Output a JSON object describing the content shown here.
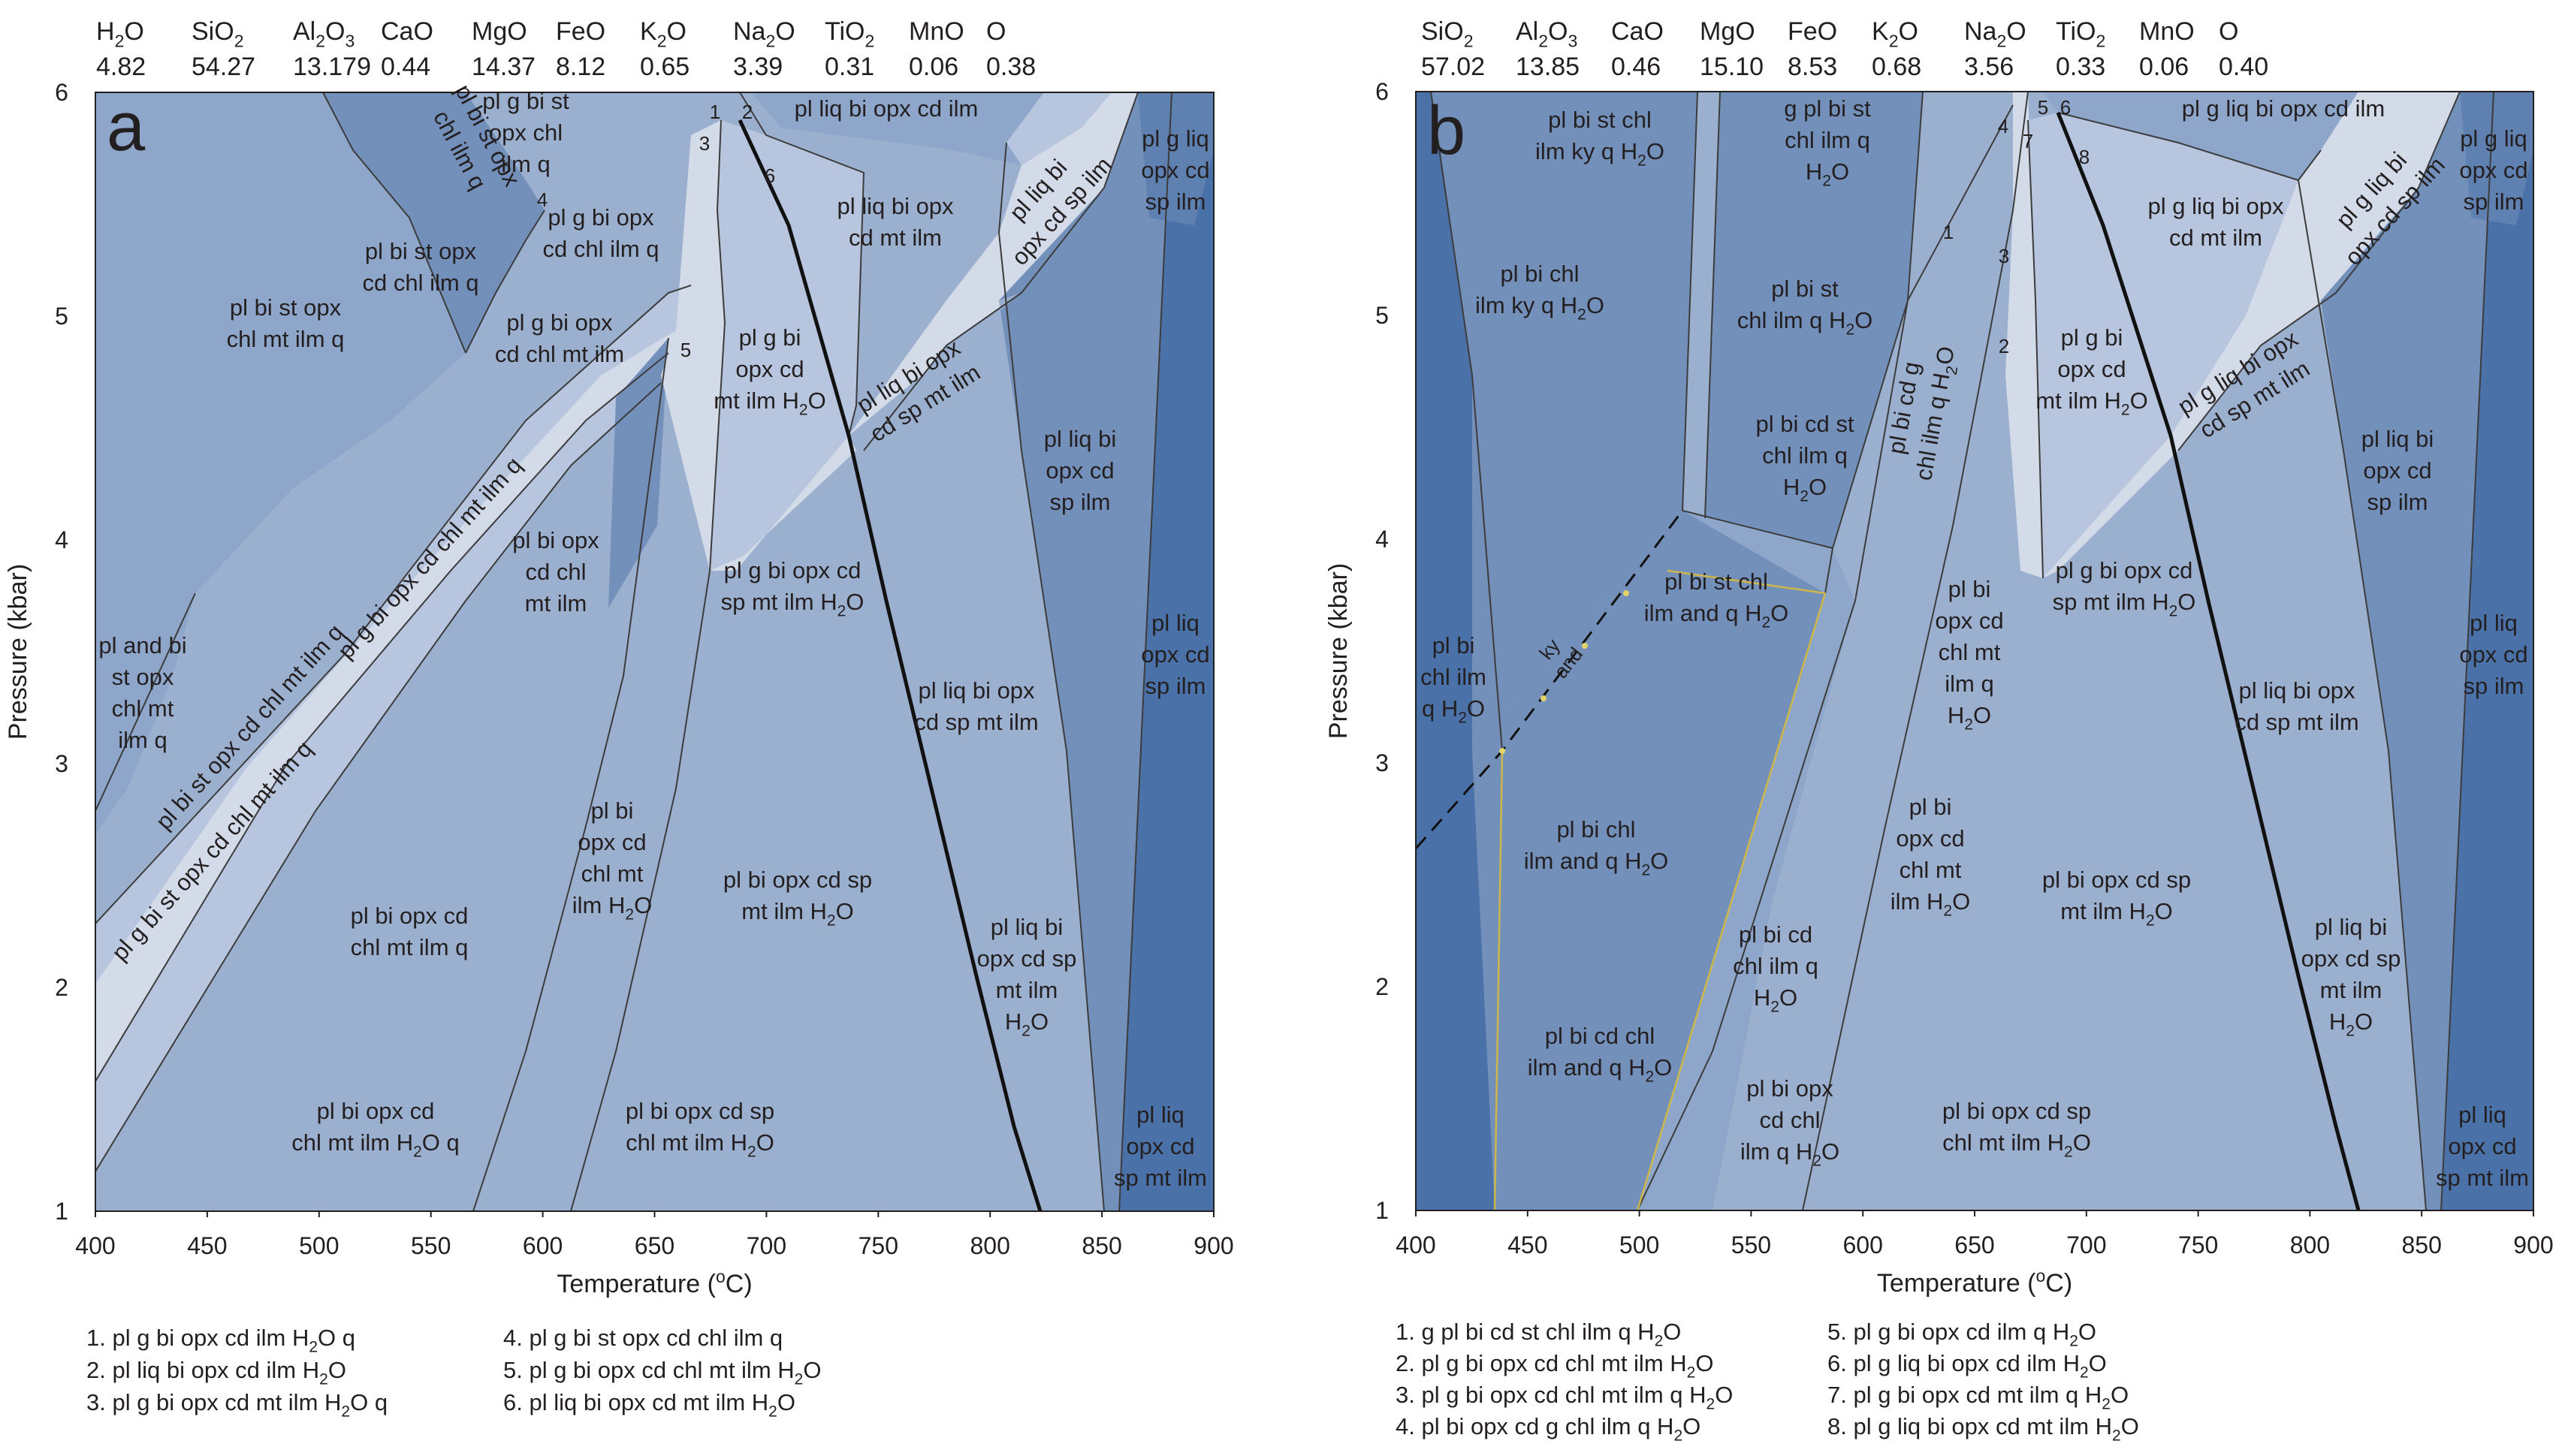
{
  "colors": {
    "field_lightest": "#d3dbe8",
    "field_light": "#b7c6de",
    "field_mid_light": "#9bb0cf",
    "field_mid": "#8ea6c9",
    "field_dark": "#7390bb",
    "field_darker": "#5f81b2",
    "field_darkest": "#4a72a8",
    "boundary_line": "#3c3c3c",
    "solidus_line": "#111111",
    "ky_and_line": "#111111",
    "ky_and_dots": "#e2d36b",
    "yellow_line": "#cdb74a"
  },
  "panel_a": {
    "label": "a",
    "composition": [
      {
        "oxide": "H<sub>2</sub>O",
        "value": "4.82"
      },
      {
        "oxide": "SiO<sub>2</sub>",
        "value": "54.27"
      },
      {
        "oxide": "Al<sub>2</sub>O<sub>3</sub>",
        "value": "13.179"
      },
      {
        "oxide": "CaO",
        "value": "0.44"
      },
      {
        "oxide": "MgO",
        "value": "14.37"
      },
      {
        "oxide": "FeO",
        "value": "8.12"
      },
      {
        "oxide": "K<sub>2</sub>O",
        "value": "0.65"
      },
      {
        "oxide": "Na<sub>2</sub>O",
        "value": "3.39"
      },
      {
        "oxide": "TiO<sub>2</sub>",
        "value": "0.31"
      },
      {
        "oxide": "MnO",
        "value": "0.06"
      },
      {
        "oxide": "O",
        "value": "0.38"
      }
    ],
    "xlabel": "Temperature (<sup>o</sup>C)",
    "ylabel": "Pressure (kbar)",
    "x_ticks": [
      "400",
      "450",
      "500",
      "550",
      "600",
      "650",
      "700",
      "750",
      "800",
      "850",
      "900"
    ],
    "y_ticks": [
      "1",
      "2",
      "3",
      "4",
      "5",
      "6"
    ],
    "field_labels": [
      {
        "lines": [
          "pl g bi st",
          "opx chl",
          "ilm q"
        ]
      },
      {
        "lines": [
          "pl bi st opx",
          "chl ilm q"
        ],
        "rotate": 62
      },
      {
        "lines": [
          "pl g bi opx",
          "cd chl ilm q"
        ]
      },
      {
        "lines": [
          "pl bi st opx",
          "cd chl ilm q"
        ]
      },
      {
        "lines": [
          "pl bi st opx",
          "chl mt ilm q"
        ]
      },
      {
        "lines": [
          "pl g bi opx",
          "cd chl mt ilm"
        ]
      },
      {
        "lines": [
          "pl g bi opx cd chl mt ilm q"
        ],
        "rotate": -48
      },
      {
        "lines": [
          "pl bi st opx cd chl mt ilm q"
        ],
        "rotate": -48
      },
      {
        "lines": [
          "pl g bi st opx cd chl mt ilm q"
        ],
        "rotate": -48
      },
      {
        "lines": [
          "pl bi opx",
          "cd chl",
          "mt ilm"
        ]
      },
      {
        "lines": [
          "pl and bi",
          "st opx",
          "chl mt",
          "ilm q"
        ]
      },
      {
        "lines": [
          "pl bi opx cd",
          "chl mt ilm q"
        ]
      },
      {
        "lines": [
          "pl bi",
          "opx cd",
          "chl mt",
          "ilm H<sub>2</sub>O"
        ]
      },
      {
        "lines": [
          "pl bi opx cd",
          "chl mt ilm H<sub>2</sub>O q"
        ]
      },
      {
        "lines": [
          "pl bi opx cd sp",
          "chl mt ilm H<sub>2</sub>O"
        ]
      },
      {
        "lines": [
          "pl bi opx cd sp",
          "mt ilm H<sub>2</sub>O"
        ]
      },
      {
        "lines": [
          "pl g bi",
          "opx cd",
          "mt ilm H<sub>2</sub>O"
        ]
      },
      {
        "lines": [
          "pl g bi opx cd",
          "sp mt ilm H<sub>2</sub>O"
        ]
      },
      {
        "lines": [
          "pl liq bi opx cd ilm"
        ]
      },
      {
        "lines": [
          "pl liq bi opx",
          "cd mt ilm"
        ]
      },
      {
        "lines": [
          "pl liq bi opx",
          "cd sp mt ilm"
        ],
        "rotate": -32
      },
      {
        "lines": [
          "pl liq bi",
          "opx cd sp ilm"
        ],
        "rotate": -48
      },
      {
        "lines": [
          "pl liq bi opx",
          "cd sp mt ilm"
        ]
      },
      {
        "lines": [
          "pl liq bi",
          "opx cd",
          "sp ilm"
        ]
      },
      {
        "lines": [
          "pl liq bi",
          "opx cd sp",
          "mt ilm",
          "H<sub>2</sub>O"
        ]
      },
      {
        "lines": [
          "pl g liq",
          "opx cd",
          "sp ilm"
        ]
      },
      {
        "lines": [
          "pl liq",
          "opx cd",
          "sp ilm"
        ]
      },
      {
        "lines": [
          "pl liq",
          "opx cd",
          "sp mt ilm"
        ]
      }
    ],
    "numbers": [
      "1",
      "2",
      "3",
      "4",
      "5",
      "6"
    ],
    "legend": [
      "1. pl g bi opx cd ilm H<sub>2</sub>O q",
      "2. pl liq bi opx cd ilm H<sub>2</sub>O",
      "3. pl g bi opx cd mt ilm H<sub>2</sub>O q",
      "4. pl g bi st opx cd chl ilm q",
      "5. pl g bi opx cd chl mt ilm H<sub>2</sub>O",
      "6. pl liq bi opx cd mt ilm H<sub>2</sub>O"
    ]
  },
  "panel_b": {
    "label": "b",
    "composition": [
      {
        "oxide": "SiO<sub>2</sub>",
        "value": "57.02"
      },
      {
        "oxide": "Al<sub>2</sub>O<sub>3</sub>",
        "value": "13.85"
      },
      {
        "oxide": "CaO",
        "value": "0.46"
      },
      {
        "oxide": "MgO",
        "value": "15.10"
      },
      {
        "oxide": "FeO",
        "value": "8.53"
      },
      {
        "oxide": "K<sub>2</sub>O",
        "value": "0.68"
      },
      {
        "oxide": "Na<sub>2</sub>O",
        "value": "3.56"
      },
      {
        "oxide": "TiO<sub>2</sub>",
        "value": "0.33"
      },
      {
        "oxide": "MnO",
        "value": "0.06"
      },
      {
        "oxide": "O",
        "value": "0.40"
      }
    ],
    "xlabel": "Temperature (<sup>o</sup>C)",
    "ylabel": "Pressure (kbar)",
    "x_ticks": [
      "400",
      "450",
      "500",
      "550",
      "600",
      "650",
      "700",
      "750",
      "800",
      "850",
      "900"
    ],
    "y_ticks": [
      "1",
      "2",
      "3",
      "4",
      "5",
      "6"
    ],
    "field_labels": [
      {
        "lines": [
          "pl bi st chl",
          "ilm ky q H<sub>2</sub>O"
        ]
      },
      {
        "lines": [
          "g pl bi st",
          "chl ilm q",
          "H<sub>2</sub>O"
        ]
      },
      {
        "lines": [
          "pl bi chl",
          "ilm ky q H<sub>2</sub>O"
        ]
      },
      {
        "lines": [
          "pl bi st",
          "chl ilm q H<sub>2</sub>O"
        ]
      },
      {
        "lines": [
          "pl bi cd st",
          "chl ilm q",
          "H<sub>2</sub>O"
        ]
      },
      {
        "lines": [
          "pl bi cd g",
          "chl ilm q H<sub>2</sub>O"
        ],
        "rotate": -80
      },
      {
        "lines": [
          "pl bi st chl",
          "ilm and q H<sub>2</sub>O"
        ]
      },
      {
        "lines": [
          "pl bi",
          "chl ilm",
          "q H<sub>2</sub>O"
        ]
      },
      {
        "lines": [
          "pl bi chl",
          "ilm and q H<sub>2</sub>O"
        ]
      },
      {
        "lines": [
          "pl bi cd chl",
          "ilm and q H<sub>2</sub>O"
        ]
      },
      {
        "lines": [
          "pl bi cd",
          "chl ilm q",
          "H<sub>2</sub>O"
        ]
      },
      {
        "lines": [
          "pl bi opx",
          "cd chl",
          "ilm q H<sub>2</sub>O"
        ]
      },
      {
        "lines": [
          "pl bi",
          "opx cd",
          "chl mt",
          "ilm q",
          "H<sub>2</sub>O"
        ]
      },
      {
        "lines": [
          "pl bi",
          "opx cd",
          "chl mt",
          "ilm H<sub>2</sub>O"
        ]
      },
      {
        "lines": [
          "pl bi opx cd sp",
          "chl mt ilm H<sub>2</sub>O"
        ]
      },
      {
        "lines": [
          "pl bi opx cd sp",
          "mt ilm H<sub>2</sub>O"
        ]
      },
      {
        "lines": [
          "pl g bi",
          "opx cd",
          "mt ilm H<sub>2</sub>O"
        ]
      },
      {
        "lines": [
          "pl g bi opx cd",
          "sp mt ilm H<sub>2</sub>O"
        ]
      },
      {
        "lines": [
          "pl g liq bi opx cd ilm"
        ]
      },
      {
        "lines": [
          "pl g liq bi opx",
          "cd mt ilm"
        ]
      },
      {
        "lines": [
          "pl g liq bi opx",
          "cd sp mt ilm"
        ],
        "rotate": -32
      },
      {
        "lines": [
          "pl g liq bi",
          "opx cd sp ilm"
        ],
        "rotate": -48
      },
      {
        "lines": [
          "pl liq bi opx",
          "cd sp mt ilm"
        ]
      },
      {
        "lines": [
          "pl liq bi",
          "opx cd",
          "sp ilm"
        ]
      },
      {
        "lines": [
          "pl liq bi",
          "opx cd sp",
          "mt ilm",
          "H<sub>2</sub>O"
        ]
      },
      {
        "lines": [
          "pl g liq",
          "opx cd",
          "sp ilm"
        ]
      },
      {
        "lines": [
          "pl liq",
          "opx cd",
          "sp ilm"
        ]
      },
      {
        "lines": [
          "pl liq",
          "opx cd",
          "sp mt ilm"
        ]
      }
    ],
    "ky_label": "ky",
    "and_label": "and",
    "numbers": [
      "1",
      "2",
      "3",
      "4",
      "5",
      "6",
      "7",
      "8"
    ],
    "legend": [
      "1. g pl bi cd st chl ilm q H<sub>2</sub>O",
      "2. pl g bi opx cd chl mt ilm H<sub>2</sub>O",
      "3. pl g bi opx cd chl mt ilm q H<sub>2</sub>O",
      "4. pl bi opx cd g chl ilm q H<sub>2</sub>O",
      "5. pl g bi opx cd ilm q H<sub>2</sub>O",
      "6. pl g liq bi opx cd ilm H<sub>2</sub>O",
      "7. pl g bi opx cd mt ilm q H<sub>2</sub>O",
      "8. pl g liq bi opx cd mt ilm H<sub>2</sub>O"
    ]
  }
}
